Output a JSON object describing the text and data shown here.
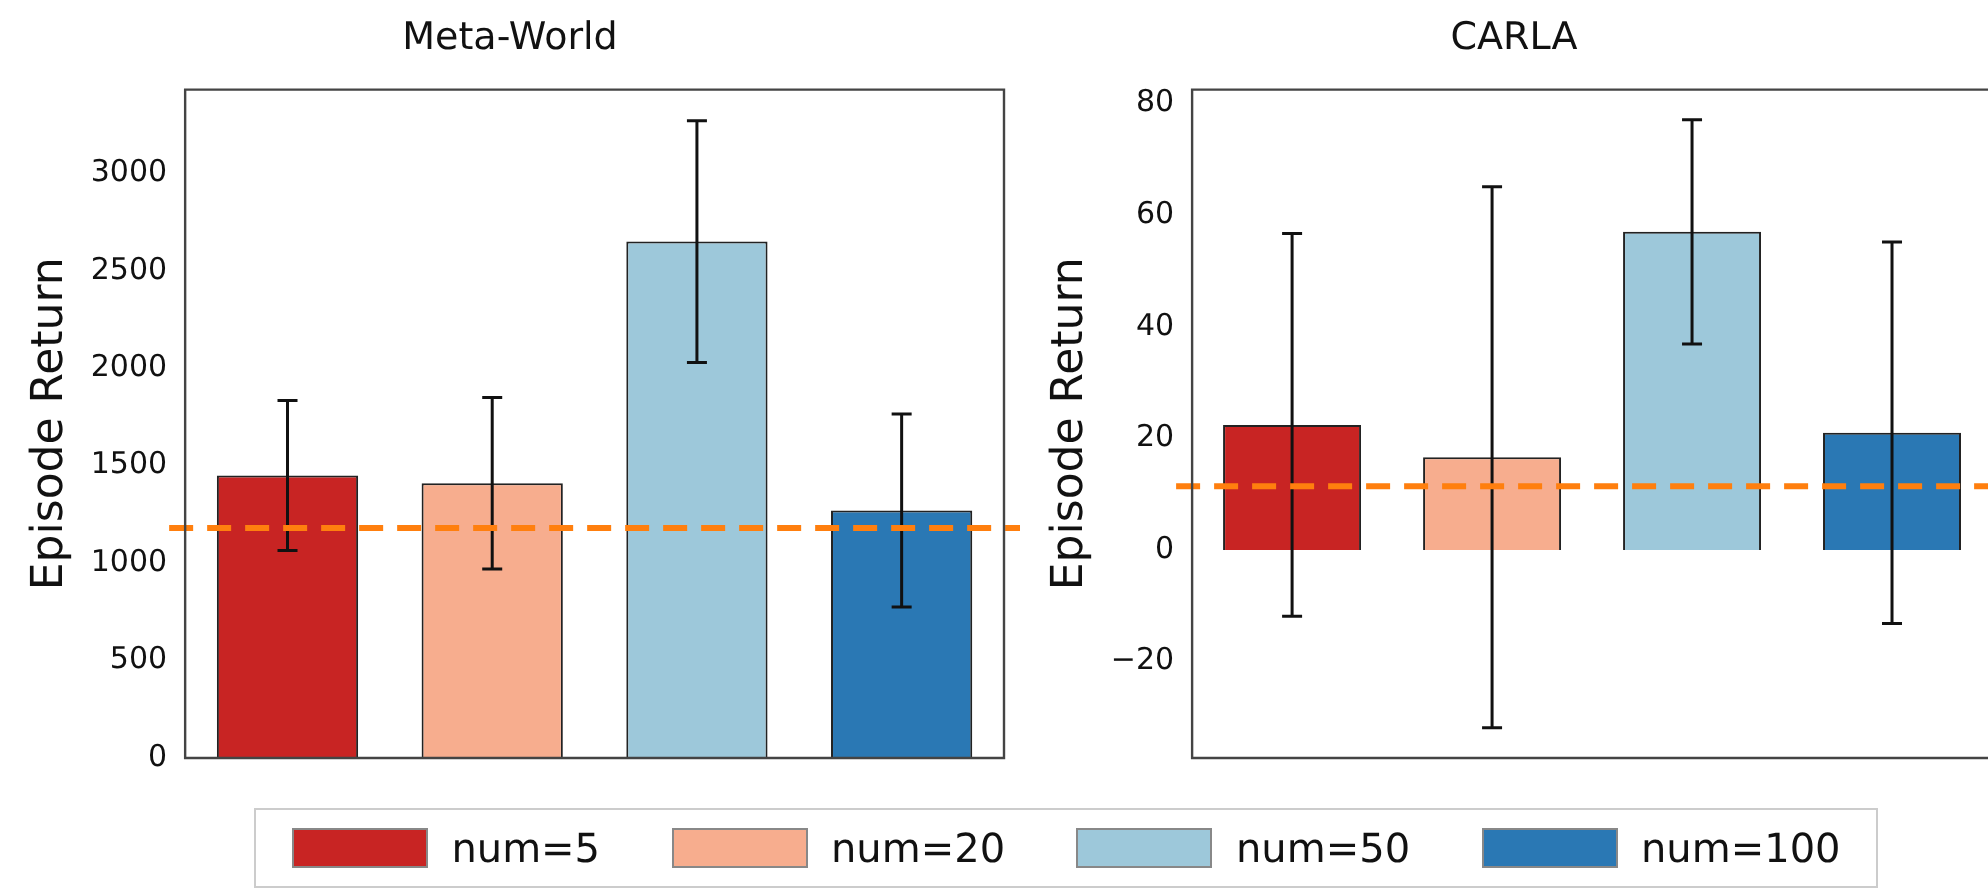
{
  "chart_data": [
    {
      "type": "bar",
      "title": "Meta-World",
      "ylabel": "Episode Return",
      "categories": [
        null
      ],
      "series": [
        {
          "name": "num=5",
          "color": "#c82423",
          "values": [
            1450
          ],
          "errors": [
            385
          ]
        },
        {
          "name": "num=20",
          "color": "#f7ad8e",
          "values": [
            1410
          ],
          "errors": [
            440
          ]
        },
        {
          "name": "num=50",
          "color": "#9dc8da",
          "values": [
            2650
          ],
          "errors": [
            620
          ]
        },
        {
          "name": "num=100",
          "color": "#2a78b4",
          "values": [
            1270
          ],
          "errors": [
            495
          ]
        }
      ],
      "ylim": [
        0,
        3430
      ],
      "yticks": [
        0,
        500,
        1000,
        1500,
        2000,
        2500,
        3000
      ],
      "ref_lines": [
        {
          "axis": "y",
          "value": 1180,
          "color": "#ff7f0e",
          "line_style": "dashed"
        }
      ],
      "tick_labels": "y",
      "grid": false,
      "legend": "bottom"
    },
    {
      "type": "bar",
      "title": "CARLA",
      "ylabel": "Episode Return",
      "categories": [
        null
      ],
      "series": [
        {
          "color": "#c82423",
          "values": [
            22.4
          ],
          "errors": [
            34.3
          ]
        },
        {
          "color": "#f7ad8e",
          "values": [
            16.6
          ],
          "errors": [
            48.5
          ]
        },
        {
          "color": "#9dc8da",
          "values": [
            57
          ],
          "errors": [
            20.1
          ]
        },
        {
          "color": "#2a78b4",
          "values": [
            21
          ],
          "errors": [
            34.2
          ]
        }
      ],
      "ylim": [
        -37.3,
        82.5
      ],
      "yticks": [
        -20,
        0,
        20,
        40,
        60,
        80
      ],
      "ref_lines": [
        {
          "axis": "y",
          "value": 11.4,
          "color": "#ff7f0e",
          "line_style": "dashed"
        }
      ],
      "tick_labels": "y",
      "grid": false
    }
  ]
}
